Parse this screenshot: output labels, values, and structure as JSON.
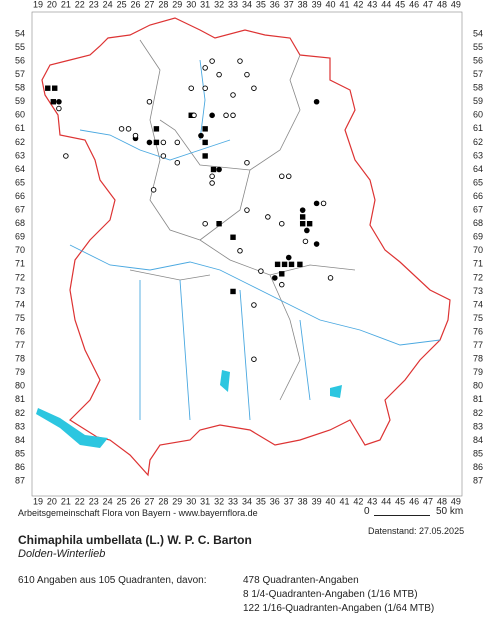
{
  "map": {
    "columns": [
      19,
      20,
      21,
      22,
      23,
      24,
      25,
      26,
      27,
      28,
      29,
      30,
      31,
      32,
      33,
      34,
      35,
      36,
      37,
      38,
      39,
      40,
      41,
      42,
      43,
      44,
      45,
      46,
      47,
      48,
      49
    ],
    "rows": [
      54,
      55,
      56,
      57,
      58,
      59,
      60,
      61,
      62,
      63,
      64,
      65,
      66,
      67,
      68,
      69,
      70,
      71,
      72,
      73,
      74,
      75,
      76,
      77,
      78,
      79,
      80,
      81,
      82,
      83,
      84,
      85,
      86,
      87
    ],
    "points": [
      {
        "x": 19.7,
        "y": 58,
        "symbol": "square"
      },
      {
        "x": 20.2,
        "y": 58,
        "symbol": "square"
      },
      {
        "x": 20.1,
        "y": 59,
        "symbol": "square"
      },
      {
        "x": 27.5,
        "y": 61,
        "symbol": "square"
      },
      {
        "x": 27.5,
        "y": 62,
        "symbol": "square"
      },
      {
        "x": 30,
        "y": 60,
        "symbol": "square"
      },
      {
        "x": 31,
        "y": 61,
        "symbol": "square"
      },
      {
        "x": 31,
        "y": 62,
        "symbol": "square"
      },
      {
        "x": 31,
        "y": 63,
        "symbol": "square"
      },
      {
        "x": 31.6,
        "y": 64,
        "symbol": "square"
      },
      {
        "x": 32,
        "y": 68,
        "symbol": "square"
      },
      {
        "x": 33,
        "y": 69,
        "symbol": "square"
      },
      {
        "x": 33,
        "y": 73,
        "symbol": "square"
      },
      {
        "x": 36.2,
        "y": 71,
        "symbol": "square"
      },
      {
        "x": 36.7,
        "y": 71,
        "symbol": "square"
      },
      {
        "x": 37.2,
        "y": 71,
        "symbol": "square"
      },
      {
        "x": 37.8,
        "y": 71,
        "symbol": "square"
      },
      {
        "x": 36.5,
        "y": 71.7,
        "symbol": "square"
      },
      {
        "x": 38,
        "y": 68,
        "symbol": "square"
      },
      {
        "x": 38.5,
        "y": 68,
        "symbol": "square"
      },
      {
        "x": 38,
        "y": 67.5,
        "symbol": "square"
      },
      {
        "x": 20.5,
        "y": 59,
        "symbol": "dot"
      },
      {
        "x": 39,
        "y": 59,
        "symbol": "dot"
      },
      {
        "x": 26,
        "y": 61.7,
        "symbol": "dot"
      },
      {
        "x": 27,
        "y": 62,
        "symbol": "dot"
      },
      {
        "x": 30.7,
        "y": 61.5,
        "symbol": "dot"
      },
      {
        "x": 31.5,
        "y": 60,
        "symbol": "dot"
      },
      {
        "x": 32,
        "y": 64,
        "symbol": "dot"
      },
      {
        "x": 38,
        "y": 67,
        "symbol": "dot"
      },
      {
        "x": 38.3,
        "y": 68.5,
        "symbol": "dot"
      },
      {
        "x": 39,
        "y": 69.5,
        "symbol": "dot"
      },
      {
        "x": 39,
        "y": 66.5,
        "symbol": "dot"
      },
      {
        "x": 36,
        "y": 72,
        "symbol": "dot"
      },
      {
        "x": 37,
        "y": 70.5,
        "symbol": "dot"
      },
      {
        "x": 20.5,
        "y": 59.5,
        "symbol": "circle"
      },
      {
        "x": 27,
        "y": 59,
        "symbol": "circle"
      },
      {
        "x": 31,
        "y": 56.5,
        "symbol": "circle"
      },
      {
        "x": 31.5,
        "y": 56,
        "symbol": "circle"
      },
      {
        "x": 32,
        "y": 57,
        "symbol": "circle"
      },
      {
        "x": 33.5,
        "y": 56,
        "symbol": "circle"
      },
      {
        "x": 34,
        "y": 57,
        "symbol": "circle"
      },
      {
        "x": 34.5,
        "y": 58,
        "symbol": "circle"
      },
      {
        "x": 30,
        "y": 58,
        "symbol": "circle"
      },
      {
        "x": 30.2,
        "y": 60,
        "symbol": "circle"
      },
      {
        "x": 31,
        "y": 58,
        "symbol": "circle"
      },
      {
        "x": 33,
        "y": 58.5,
        "symbol": "circle"
      },
      {
        "x": 32.5,
        "y": 60,
        "symbol": "circle"
      },
      {
        "x": 33,
        "y": 60,
        "symbol": "circle"
      },
      {
        "x": 25.5,
        "y": 61,
        "symbol": "circle"
      },
      {
        "x": 26,
        "y": 61.5,
        "symbol": "circle"
      },
      {
        "x": 28,
        "y": 62,
        "symbol": "circle"
      },
      {
        "x": 29,
        "y": 62,
        "symbol": "circle"
      },
      {
        "x": 28,
        "y": 63,
        "symbol": "circle"
      },
      {
        "x": 29,
        "y": 63.5,
        "symbol": "circle"
      },
      {
        "x": 31.5,
        "y": 64.5,
        "symbol": "circle"
      },
      {
        "x": 31.5,
        "y": 65,
        "symbol": "circle"
      },
      {
        "x": 27.3,
        "y": 65.5,
        "symbol": "circle"
      },
      {
        "x": 34,
        "y": 63.5,
        "symbol": "circle"
      },
      {
        "x": 36.5,
        "y": 64.5,
        "symbol": "circle"
      },
      {
        "x": 37,
        "y": 64.5,
        "symbol": "circle"
      },
      {
        "x": 36.5,
        "y": 68,
        "symbol": "circle"
      },
      {
        "x": 35.5,
        "y": 67.5,
        "symbol": "circle"
      },
      {
        "x": 31,
        "y": 68,
        "symbol": "circle"
      },
      {
        "x": 34,
        "y": 67,
        "symbol": "circle"
      },
      {
        "x": 38.2,
        "y": 69.3,
        "symbol": "circle"
      },
      {
        "x": 39.5,
        "y": 66.5,
        "symbol": "circle"
      },
      {
        "x": 35,
        "y": 71.5,
        "symbol": "circle"
      },
      {
        "x": 33.5,
        "y": 70,
        "symbol": "circle"
      },
      {
        "x": 36.5,
        "y": 72.5,
        "symbol": "circle"
      },
      {
        "x": 34.5,
        "y": 74,
        "symbol": "circle"
      },
      {
        "x": 34.5,
        "y": 78,
        "symbol": "circle"
      },
      {
        "x": 21,
        "y": 63,
        "symbol": "circle"
      },
      {
        "x": 40,
        "y": 72,
        "symbol": "circle"
      },
      {
        "x": 25,
        "y": 61,
        "symbol": "circle"
      }
    ]
  },
  "scale": {
    "start": "0",
    "end": "50 km"
  },
  "footer": {
    "credit": "Arbeitsgemeinschaft Flora von Bayern - www.bayernflora.de",
    "date": "Datenstand: 27.05.2025",
    "species": "Chimaphila umbellata (L.) W. P. C. Barton",
    "common_name": "Dolden-Winterlieb",
    "summary": "610 Angaben aus 105 Quadranten, davon:",
    "counts": [
      "478 Quadranten-Angaben",
      "8 1/4-Quadranten-Angaben (1/16 MTB)",
      "122 1/16-Quadranten-Angaben (1/64 MTB)"
    ]
  }
}
